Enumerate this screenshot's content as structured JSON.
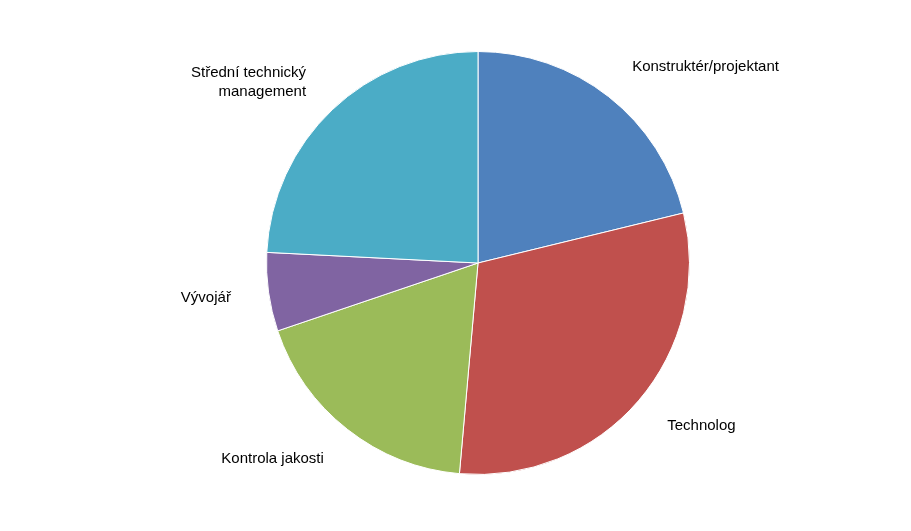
{
  "chart_data": {
    "type": "pie",
    "categories": [
      "Konstruktér/projektant",
      "Technolog",
      "Kontrola jakosti",
      "Vývojář",
      "Střední technický management"
    ],
    "values": [
      21.2,
      30.2,
      18.4,
      6.0,
      24.2
    ],
    "colors": [
      "#4f81bd",
      "#c0504d",
      "#9bbb59",
      "#8064a2",
      "#4bacc6"
    ]
  }
}
